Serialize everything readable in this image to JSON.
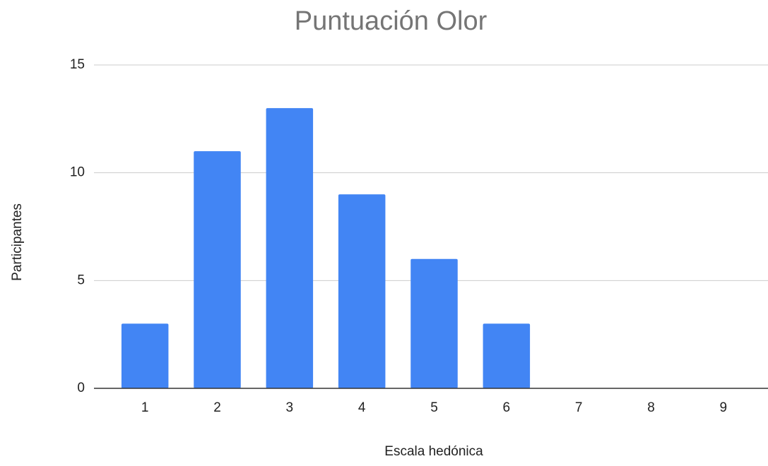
{
  "chart_data": {
    "type": "bar",
    "title": "Puntuación Olor",
    "x_label": "Escala hedónica",
    "y_label": "Participantes",
    "categories": [
      "1",
      "2",
      "3",
      "4",
      "5",
      "6",
      "7",
      "8",
      "9"
    ],
    "values": [
      3,
      11,
      13,
      9,
      6,
      3,
      0,
      0,
      0
    ],
    "color": "#4285f4",
    "ylim": [
      0,
      15
    ],
    "yticks": [
      0,
      5,
      10,
      15
    ],
    "grid": true
  }
}
